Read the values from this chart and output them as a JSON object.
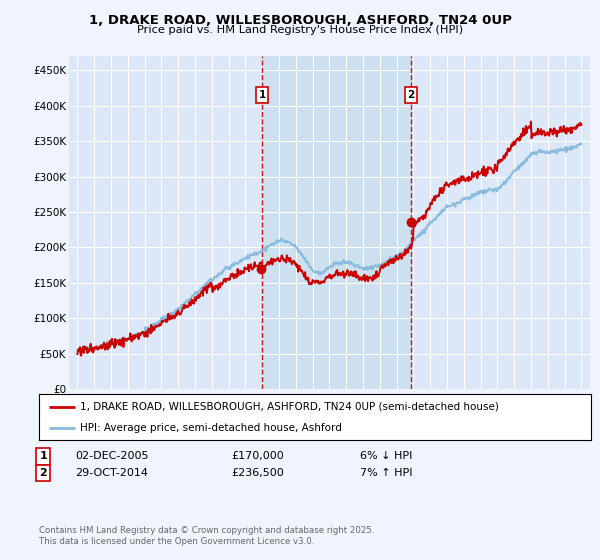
{
  "title": "1, DRAKE ROAD, WILLESBOROUGH, ASHFORD, TN24 0UP",
  "subtitle": "Price paid vs. HM Land Registry's House Price Index (HPI)",
  "background_color": "#f0f4ff",
  "plot_bg_color": "#dce8f8",
  "grid_color": "#ffffff",
  "vline1_x": 2006.0,
  "vline2_x": 2014.85,
  "legend_line1": "1, DRAKE ROAD, WILLESBOROUGH, ASHFORD, TN24 0UP (semi-detached house)",
  "legend_line2": "HPI: Average price, semi-detached house, Ashford",
  "footer": "Contains HM Land Registry data © Crown copyright and database right 2025.\nThis data is licensed under the Open Government Licence v3.0.",
  "ylim": [
    0,
    470000
  ],
  "yticks": [
    0,
    50000,
    100000,
    150000,
    200000,
    250000,
    300000,
    350000,
    400000,
    450000
  ],
  "ytick_labels": [
    "£0",
    "£50K",
    "£100K",
    "£150K",
    "£200K",
    "£250K",
    "£300K",
    "£350K",
    "£400K",
    "£450K"
  ],
  "xlim": [
    1994.5,
    2025.5
  ],
  "xticks": [
    1995,
    1996,
    1997,
    1998,
    1999,
    2000,
    2001,
    2002,
    2003,
    2004,
    2005,
    2006,
    2007,
    2008,
    2009,
    2010,
    2011,
    2012,
    2013,
    2014,
    2015,
    2016,
    2017,
    2018,
    2019,
    2020,
    2021,
    2022,
    2023,
    2024,
    2025
  ],
  "red_color": "#cc0000",
  "blue_color": "#88bbdd",
  "marker_box_color": "#cc0000",
  "shading_color": "#cce0f0"
}
